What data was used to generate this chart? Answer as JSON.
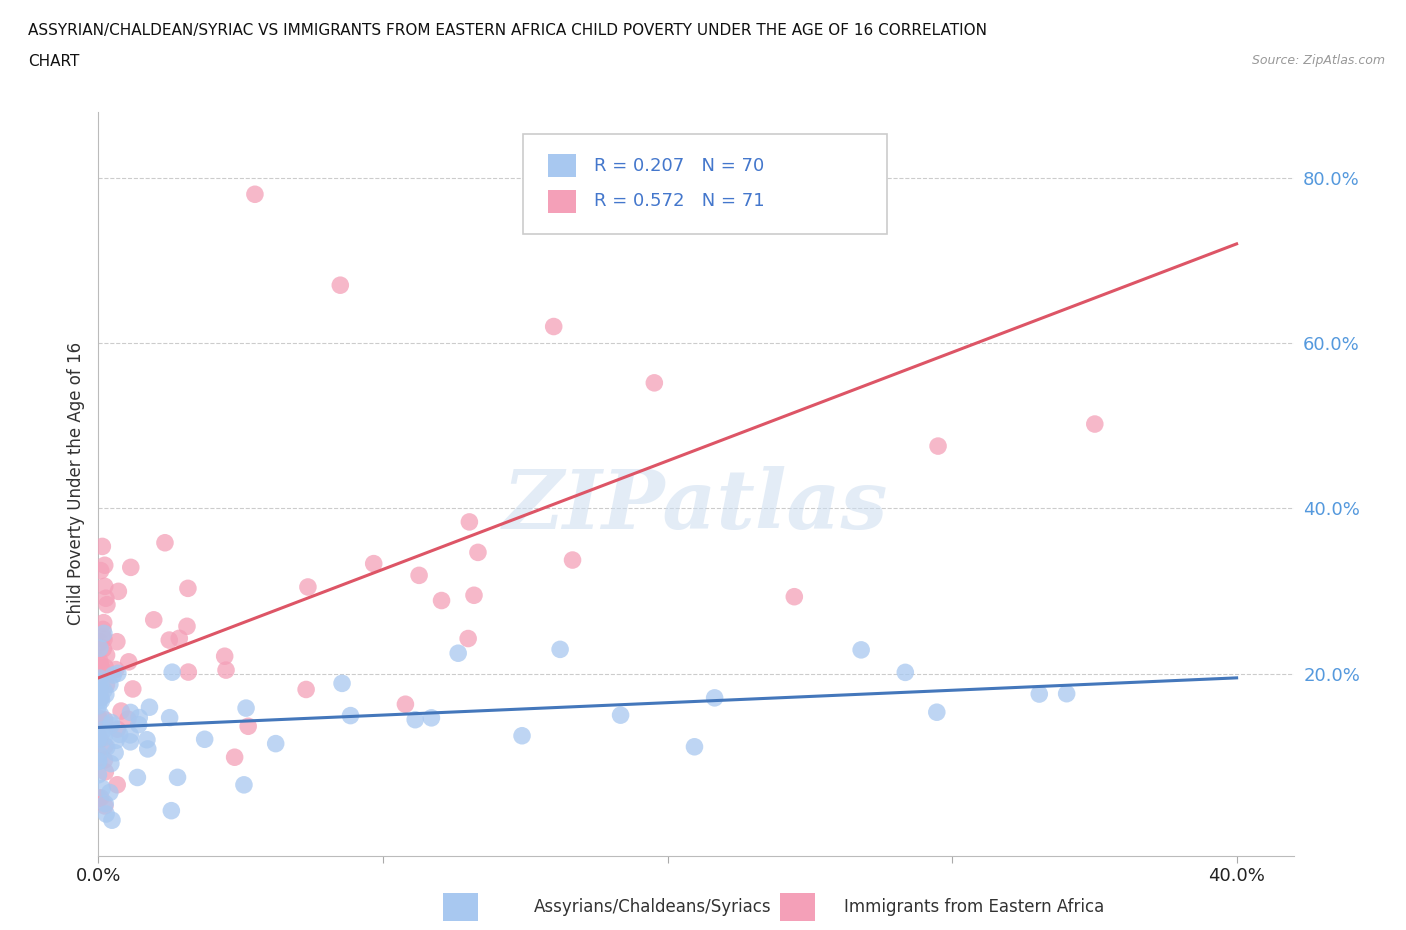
{
  "title_line1": "ASSYRIAN/CHALDEAN/SYRIAC VS IMMIGRANTS FROM EASTERN AFRICA CHILD POVERTY UNDER THE AGE OF 16 CORRELATION",
  "title_line2": "CHART",
  "source": "Source: ZipAtlas.com",
  "ylabel": "Child Poverty Under the Age of 16",
  "xlim": [
    0.0,
    0.42
  ],
  "ylim": [
    -0.02,
    0.88
  ],
  "yticks": [
    0.0,
    0.2,
    0.4,
    0.6,
    0.8
  ],
  "ytick_labels": [
    "",
    "20.0%",
    "40.0%",
    "60.0%",
    "80.0%"
  ],
  "xticks": [
    0.0,
    0.1,
    0.2,
    0.3,
    0.4
  ],
  "xtick_labels": [
    "0.0%",
    "",
    "",
    "",
    "40.0%"
  ],
  "color_assyrian": "#a8c8f0",
  "color_eastern_africa": "#f4a0b8",
  "color_assyrian_line": "#4477bb",
  "color_eastern_africa_line": "#dd5566",
  "R_assyrian": 0.207,
  "N_assyrian": 70,
  "R_eastern_africa": 0.572,
  "N_eastern_africa": 71,
  "legend_label_assyrian": "Assyrians/Chaldeans/Syriacs",
  "legend_label_eastern_africa": "Immigrants from Eastern Africa",
  "watermark": "ZIPatlas",
  "ass_trend_x0": 0.0,
  "ass_trend_y0": 0.135,
  "ass_trend_x1": 0.4,
  "ass_trend_y1": 0.195,
  "ea_trend_x0": 0.0,
  "ea_trend_y0": 0.195,
  "ea_trend_x1": 0.4,
  "ea_trend_y1": 0.72
}
